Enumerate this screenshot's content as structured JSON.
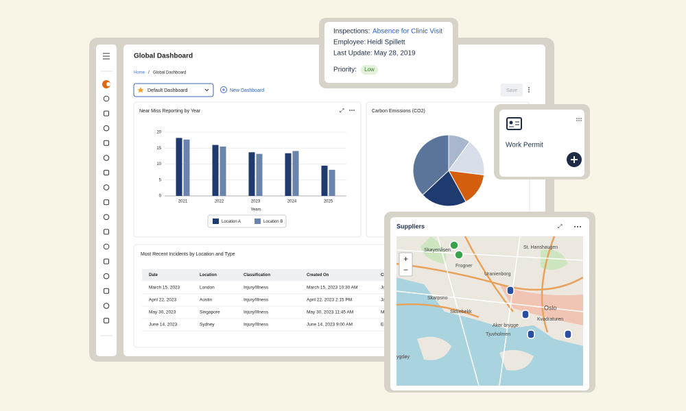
{
  "header": {
    "title": "Global Dashboard",
    "breadcrumb": [
      "Home",
      "Global Dashboard"
    ],
    "breadcrumb_separator": "/",
    "dashboard_select": "Default Dashboard",
    "new_dashboard": "New Dashboard",
    "save": "Save"
  },
  "popup": {
    "inspections_label": "Inspections:",
    "inspections_value": "Absence for Clinic Visit",
    "employee_label": "Employee:",
    "employee_value": "Heidi Spillett",
    "update_label": "Last Update:",
    "update_value": "May 28, 2019",
    "priority_label": "Priority:",
    "priority_value": "Low"
  },
  "chart_data": [
    {
      "type": "bar",
      "title": "Near Miss Reporting by Year",
      "xlabel": "Years",
      "categories": [
        "2021",
        "2022",
        "2023",
        "2024",
        "2025"
      ],
      "series": [
        {
          "name": "Location A",
          "color": "#1f3a6e",
          "values": [
            18.2,
            16,
            13.7,
            13.4,
            9.5
          ]
        },
        {
          "name": "Location B",
          "color": "#6b84ae",
          "values": [
            17.7,
            15.5,
            13.2,
            14.1,
            8.2
          ]
        }
      ],
      "ylim": [
        0,
        20
      ],
      "yticks": [
        0,
        5,
        10,
        15,
        20
      ],
      "grid": true,
      "legend": "bottom"
    },
    {
      "type": "pie",
      "title": "Carbon Emissions (CO2)",
      "values": [
        10,
        17,
        15,
        21,
        37
      ],
      "colors": [
        "#a9b7cd",
        "#d7dee9",
        "#d35f0e",
        "#1f3a6e",
        "#5b7499"
      ]
    }
  ],
  "work_permit": {
    "title": "Work Permit"
  },
  "table": {
    "title": "Most Recent Incidents by Location and Type",
    "columns": [
      "Date",
      "Location",
      "Classification",
      "Created On",
      "Crea"
    ],
    "rows": [
      [
        "March 15, 2023",
        "London",
        "Injury/Illness",
        "March 15, 2023 10:30 AM",
        "John"
      ],
      [
        "April 22, 2023",
        "Austin",
        "Injury/Illness",
        "April 22, 2023 2:15 PM",
        "Jane"
      ],
      [
        "May 30, 2023",
        "Singapore",
        "Injury/Illness",
        "May 30, 2023 11:45 AM",
        "Mich"
      ],
      [
        "June 14, 2023",
        "Sydney",
        "Injury/Illness",
        "June 14, 2023 9:00 AM",
        "Emily"
      ]
    ]
  },
  "suppliers": {
    "title": "Suppliers",
    "map_labels": [
      "Skøyenåsen",
      "Frogner",
      "St. Hanshaugen",
      "Uranienborg",
      "Skarpsno",
      "Skillebekk",
      "Oslo",
      "Aker brygge",
      "Kvadraturen",
      "Tjuvholmen",
      "ygdøy"
    ]
  }
}
